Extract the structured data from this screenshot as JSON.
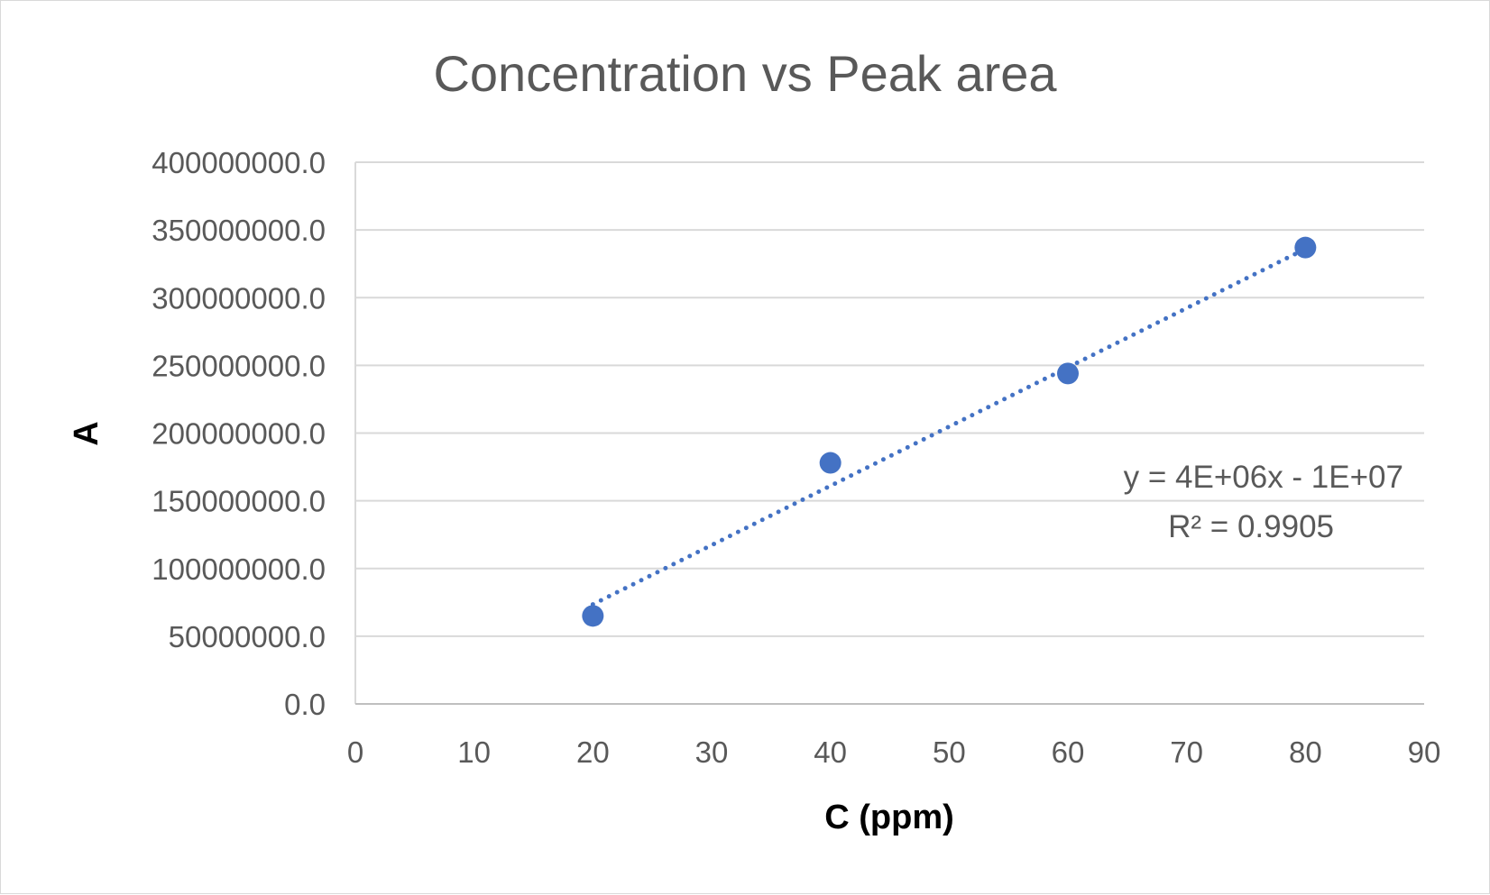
{
  "chart_data": {
    "type": "scatter",
    "title": "Concentration vs Peak area",
    "xlabel": "C (ppm)",
    "ylabel": "A",
    "xlim": [
      0,
      90
    ],
    "ylim": [
      0,
      400000000
    ],
    "x_ticks": [
      "0",
      "10",
      "20",
      "30",
      "40",
      "50",
      "60",
      "70",
      "80",
      "90"
    ],
    "y_ticks": [
      "0.0",
      "50000000.0",
      "100000000.0",
      "150000000.0",
      "200000000.0",
      "250000000.0",
      "300000000.0",
      "350000000.0",
      "400000000.0"
    ],
    "grid": true,
    "legend": "none",
    "series": [
      {
        "x": [
          20,
          40,
          60,
          80
        ],
        "y": [
          65000000,
          178000000,
          244000000,
          337000000
        ],
        "color": "#4472c4"
      }
    ],
    "trendline": {
      "type": "linear",
      "style": "dotted",
      "color": "#4472c4",
      "x_range": [
        20,
        80
      ],
      "y_range": [
        73500000,
        336000000
      ],
      "equation": "y = 4E+06x - 1E+07",
      "r_squared": "R² = 0.9905"
    }
  }
}
